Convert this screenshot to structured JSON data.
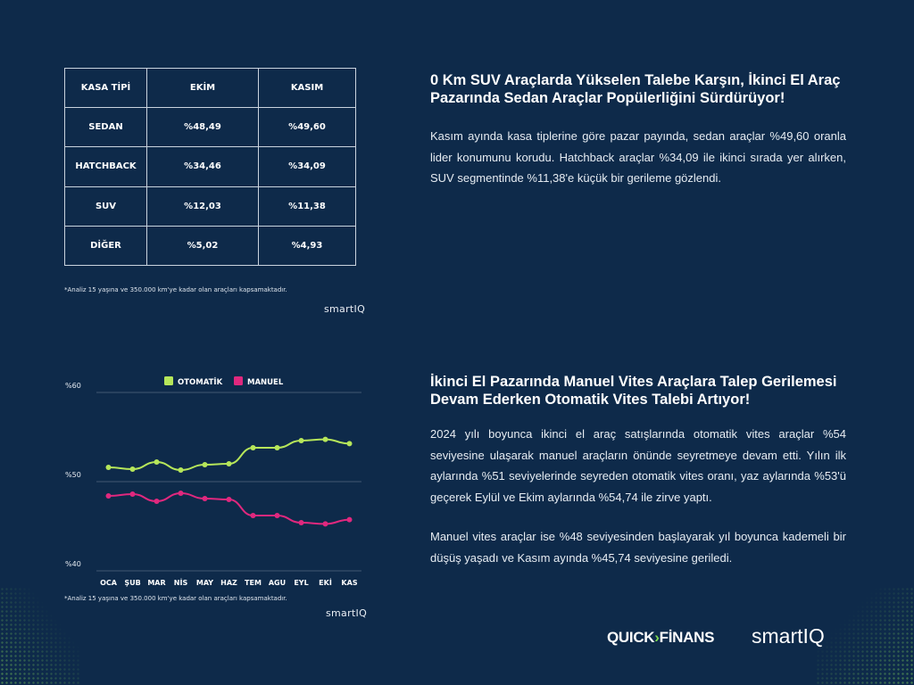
{
  "table": {
    "headers": [
      "KASA TİPİ",
      "EKİM",
      "KASIM"
    ],
    "rows": [
      [
        "SEDAN",
        "%48,49",
        "%49,60"
      ],
      [
        "HATCHBACK",
        "%34,46",
        "%34,09"
      ],
      [
        "SUV",
        "%12,03",
        "%11,38"
      ],
      [
        "DİĞER",
        "%5,02",
        "%4,93"
      ]
    ]
  },
  "note1": "*Analiz 15 yaşına ve 350.000 km'ye kadar olan araçları kapsamaktadır.",
  "note2": "*Analiz 15 yaşına ve 350.000 km'ye kadar olan araçları kapsamaktadır.",
  "smartiq_small": "smartIQ",
  "section1": {
    "heading": "0 Km SUV Araçlarda Yükselen Talebe Karşın, İkinci El Araç Pazarında Sedan Araçlar Popülerliğini Sürdürüyor!",
    "paragraph": "Kasım ayında kasa tiplerine göre pazar payında, sedan araçlar %49,60 oranla lider konumunu korudu. Hatchback araçlar %34,09 ile ikinci sırada yer alırken, SUV segmentinde %11,38'e küçük bir gerileme gözlendi."
  },
  "section2": {
    "heading": "İkinci El Pazarında Manuel Vites Araçlara Talep Gerilemesi Devam Ederken Otomatik Vites Talebi Artıyor!",
    "paragraph1": "2024 yılı boyunca ikinci el araç satışlarında otomatik vites araçlar %54 seviyesine ulaşarak manuel araçların önünde seyretmeye devam etti. Yılın ilk aylarında %51 seviyelerinde seyreden otomatik vites oranı, yaz aylarında %53'ü geçerek Eylül ve Ekim aylarında %54,74 ile zirve yaptı.",
    "paragraph2": "Manuel vites araçlar ise %48 seviyesinden başlayarak yıl boyunca kademeli bir düşüş yaşadı ve Kasım ayında %45,74 seviyesine geriledi."
  },
  "logos": {
    "quick": "QUICK",
    "finans": "FİNANS",
    "smartiq": "smartIQ"
  },
  "colors": {
    "background": "#0e2a4a",
    "otomatik": "#b6e65a",
    "manuel": "#e0287e"
  },
  "chart_data": {
    "type": "line",
    "categories": [
      "OCA",
      "ŞUB",
      "MAR",
      "NİS",
      "MAY",
      "HAZ",
      "TEM",
      "AGU",
      "EYL",
      "EKİ",
      "KAS"
    ],
    "series": [
      {
        "name": "OTOMATİK",
        "color": "#b6e65a",
        "values": [
          51.6,
          51.4,
          52.2,
          51.3,
          51.9,
          52.0,
          53.8,
          53.8,
          54.6,
          54.74,
          54.26
        ]
      },
      {
        "name": "MANUEL",
        "color": "#e0287e",
        "values": [
          48.4,
          48.6,
          47.8,
          48.7,
          48.1,
          48.0,
          46.2,
          46.2,
          45.4,
          45.26,
          45.74
        ]
      }
    ],
    "yticks": [
      "%60",
      "%50",
      "%40"
    ],
    "ylim": [
      40,
      60
    ],
    "grid": true,
    "legend_position": "top"
  }
}
